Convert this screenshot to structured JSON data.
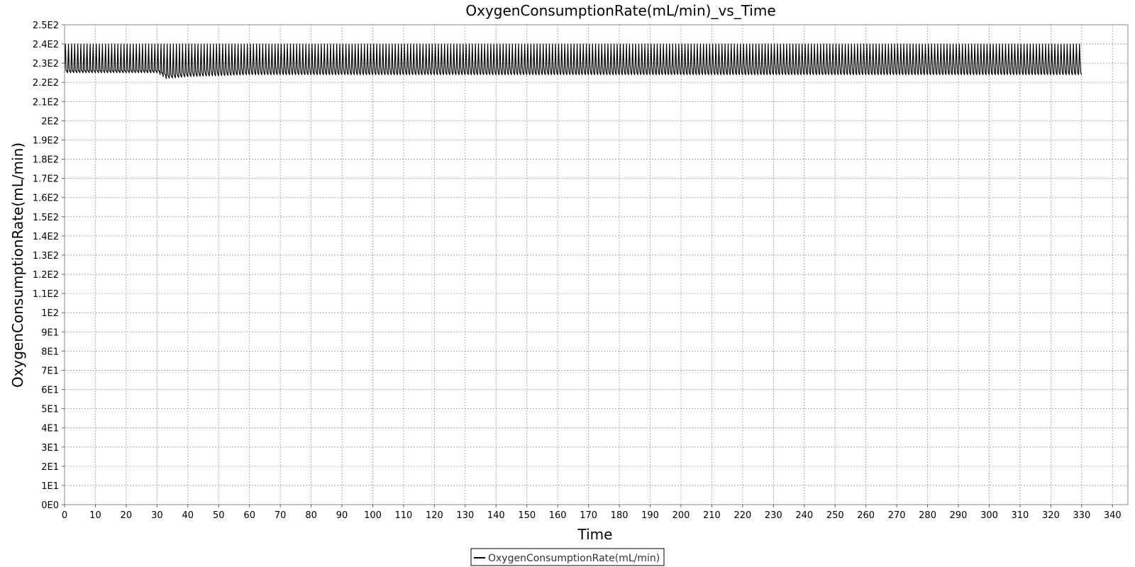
{
  "chart_data": {
    "type": "line",
    "title": "OxygenConsumptionRate(mL/min)_vs_Time",
    "xlabel": "Time",
    "ylabel": "OxygenConsumptionRate(mL/min)",
    "xlim": [
      0,
      345
    ],
    "ylim": [
      0,
      250
    ],
    "x_ticks": [
      0,
      10,
      20,
      30,
      40,
      50,
      60,
      70,
      80,
      90,
      100,
      110,
      120,
      130,
      140,
      150,
      160,
      170,
      180,
      190,
      200,
      210,
      220,
      230,
      240,
      250,
      260,
      270,
      280,
      290,
      300,
      310,
      320,
      330,
      340
    ],
    "y_ticks": [
      0,
      10,
      20,
      30,
      40,
      50,
      60,
      70,
      80,
      90,
      100,
      110,
      120,
      130,
      140,
      150,
      160,
      170,
      180,
      190,
      200,
      210,
      220,
      230,
      240,
      250
    ],
    "y_tick_labels": [
      "0E0",
      "1E1",
      "2E1",
      "3E1",
      "4E1",
      "5E1",
      "6E1",
      "7E1",
      "8E1",
      "9E1",
      "1E2",
      "1.1E2",
      "1.2E2",
      "1.3E2",
      "1.4E2",
      "1.5E2",
      "1.6E2",
      "1.7E2",
      "1.8E2",
      "1.9E2",
      "2E2",
      "2.1E2",
      "2.2E2",
      "2.3E2",
      "2.4E2",
      "2.5E2"
    ],
    "grid": true,
    "legend_position": "bottom",
    "series": [
      {
        "name": "OxygenConsumptionRate(mL/min)",
        "color": "#000000",
        "x_range": [
          0,
          330
        ],
        "oscillation_period": 1.0,
        "peak_value": 240,
        "envelope": {
          "x": [
            0,
            30,
            31,
            33,
            40,
            60,
            90,
            150,
            200,
            250,
            280,
            300,
            330
          ],
          "trough": [
            225,
            225,
            224,
            222,
            223,
            224,
            224,
            224,
            224,
            224,
            224,
            224,
            224
          ],
          "mid": [
            226,
            226,
            225,
            224,
            226,
            228,
            228,
            228,
            229,
            230,
            231,
            231,
            230
          ]
        }
      }
    ]
  }
}
